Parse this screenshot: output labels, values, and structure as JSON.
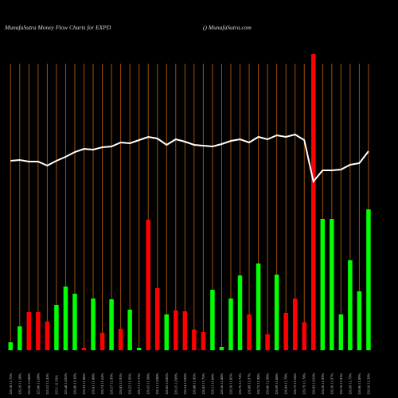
{
  "chart_data": {
    "type": "bar",
    "title": "MunafaSutra  Money Flow  Charts for EXPD",
    "subtitle": "() MunafaSutra.com",
    "categories": [
      "126.18 11.76%",
      "126.19 11.58%",
      "125.96 12.00%",
      "125.86 11.68%",
      "125.52 11.43%",
      "125.1 11.93%",
      "125.48 12.02%",
      "126.06 12.18%",
      "126.33 11.88%",
      "126.81 11.88%",
      "126.74 11.64%",
      "126.57 11.99%",
      "126.83 11.93%",
      "126.22 11.96%",
      "126.71 11.75%",
      "126.65 11.98%",
      "126.31 12.00%",
      "126.05 12.06%",
      "126.55 12.09%",
      "126.54 12.04%",
      "126.08 11.96%",
      "126.02 11.76%",
      "126.11 11.84%",
      "126.36 11.88%",
      "126.56 11.85%",
      "126.76 11.74%",
      "126.89 11.97%",
      "126.75 11.98%",
      "126.86 11.90%",
      "126.99 11.88%",
      "126.84 11.70%",
      "126.75 11.68%",
      "126.79 11.78%",
      "126.03 12.66%",
      "126.26 11.99%",
      "126.36 11.97%",
      "126.76 11.93%",
      "126.99 11.79%",
      "126.06 11.89%",
      "126.36 11.59%"
    ],
    "values": [
      10,
      30,
      48,
      48,
      36,
      57,
      80,
      71,
      3,
      65,
      22,
      64,
      27,
      51,
      3,
      164,
      78,
      45,
      50,
      49,
      26,
      23,
      76,
      4,
      65,
      94,
      45,
      109,
      20,
      95,
      47,
      65,
      35,
      372,
      165,
      165,
      45,
      113,
      74,
      177
    ],
    "colors": [
      "#00ff00",
      "#00ff00",
      "#ff0000",
      "#ff0000",
      "#ff0000",
      "#00ff00",
      "#00ff00",
      "#00ff00",
      "#ff0000",
      "#00ff00",
      "#ff0000",
      "#00ff00",
      "#ff0000",
      "#00ff00",
      "#00ff00",
      "#ff0000",
      "#ff0000",
      "#00ff00",
      "#ff0000",
      "#ff0000",
      "#ff0000",
      "#ff0000",
      "#00ff00",
      "#00ff00",
      "#00ff00",
      "#00ff00",
      "#ff0000",
      "#00ff00",
      "#ff0000",
      "#00ff00",
      "#ff0000",
      "#ff0000",
      "#ff0000",
      "#ff0000",
      "#00ff00",
      "#00ff00",
      "#00ff00",
      "#00ff00",
      "#00ff00",
      "#00ff00"
    ],
    "line": {
      "color": "#ffffff",
      "values": [
        238,
        239,
        237,
        237,
        232,
        238,
        243,
        249,
        253,
        252,
        255,
        256,
        261,
        260,
        264,
        268,
        266,
        258,
        265,
        262,
        258,
        257,
        256,
        259,
        263,
        265,
        261,
        268,
        265,
        270,
        268,
        271,
        264,
        212,
        226,
        226,
        227,
        233,
        235,
        250
      ]
    },
    "ylim": [
      0,
      372
    ],
    "grid": true,
    "grid_color": "#a0500a"
  }
}
